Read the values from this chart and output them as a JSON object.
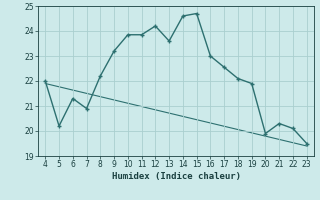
{
  "xlabel": "Humidex (Indice chaleur)",
  "ylabel": "",
  "x_main": [
    4,
    5,
    6,
    7,
    8,
    9,
    10,
    11,
    12,
    13,
    14,
    15,
    16,
    17,
    18,
    19,
    20,
    21,
    22,
    23
  ],
  "y_main": [
    22.0,
    20.2,
    21.3,
    20.9,
    22.2,
    23.2,
    23.85,
    23.85,
    24.2,
    23.6,
    24.6,
    24.7,
    23.0,
    22.55,
    22.1,
    21.9,
    19.9,
    20.3,
    20.1,
    19.5
  ],
  "trend_x": [
    4,
    23
  ],
  "trend_y": [
    21.9,
    19.4
  ],
  "xlim_min": 3.5,
  "xlim_max": 23.5,
  "ylim_min": 19,
  "ylim_max": 25,
  "yticks": [
    19,
    20,
    21,
    22,
    23,
    24,
    25
  ],
  "xticks": [
    4,
    5,
    6,
    7,
    8,
    9,
    10,
    11,
    12,
    13,
    14,
    15,
    16,
    17,
    18,
    19,
    20,
    21,
    22,
    23
  ],
  "line_color": "#2d7070",
  "bg_color": "#cdeaea",
  "grid_color": "#aacfcf",
  "text_color": "#1a4040",
  "linewidth": 1.0,
  "markersize": 3.5,
  "xlabel_fontsize": 6.5,
  "tick_labelsize": 5.5
}
